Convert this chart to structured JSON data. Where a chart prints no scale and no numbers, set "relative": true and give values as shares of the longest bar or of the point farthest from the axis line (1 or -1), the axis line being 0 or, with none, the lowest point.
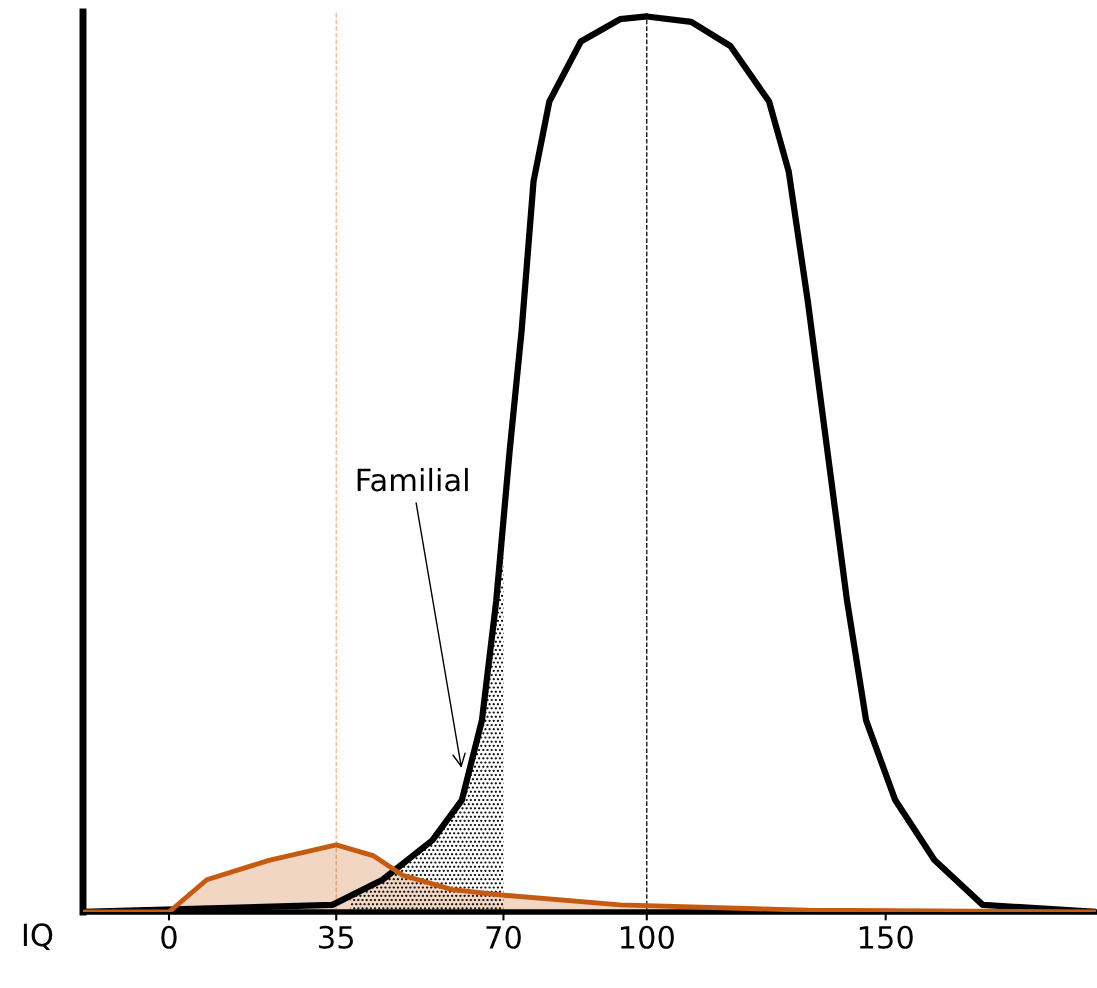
{
  "chart_data": {
    "type": "line",
    "relative": true,
    "xlabel": "IQ",
    "xlim": [
      -18,
      194
    ],
    "xticks": [
      0,
      35,
      70,
      100,
      150
    ],
    "tick_labels": "x",
    "grid": false,
    "marker": "none",
    "line_style": "solid",
    "series": [
      {
        "type": "area",
        "color": "#c55a11",
        "x": [
          -18,
          0,
          7.9,
          21.1,
          35,
          42.7,
          48.9,
          59.3,
          69.6,
          94.4,
          133.7,
          194
        ],
        "values": [
          0,
          0,
          0.036,
          0.058,
          0.075,
          0.063,
          0.041,
          0.025,
          0.019,
          0.008,
          0.002,
          0
        ]
      },
      {
        "type": "area",
        "color": "#000000",
        "x": [
          38,
          44.7,
          55.1,
          61.3,
          65.5,
          68.5,
          70
        ],
        "values": [
          0.02,
          0.036,
          0.08,
          0.125,
          0.214,
          0.348,
          0.42
        ]
      },
      {
        "color": "#000000",
        "x": [
          -18,
          34.2,
          44.7,
          55.1,
          61.3,
          65.5,
          68.5,
          71.3,
          73.8,
          76.3,
          79.6,
          86.2,
          94.4,
          100,
          109.3,
          117.5,
          125.6,
          129.7,
          133.7,
          137.8,
          141.9,
          145.9,
          152,
          160.2,
          170.3,
          194
        ],
        "values": [
          0,
          0.008,
          0.036,
          0.08,
          0.125,
          0.214,
          0.348,
          0.515,
          0.649,
          0.816,
          0.905,
          0.972,
          0.997,
          1,
          0.994,
          0.967,
          0.905,
          0.827,
          0.682,
          0.515,
          0.348,
          0.214,
          0.125,
          0.058,
          0.008,
          0
        ]
      }
    ],
    "ref_lines": [
      {
        "axis": "x",
        "value": 100,
        "color": "#000000",
        "line_style": "dashed"
      },
      {
        "axis": "x",
        "value": 35,
        "color": "#f4b183",
        "line_style": "dashed"
      }
    ],
    "annotations": [
      {
        "text": "Familial",
        "x": 61.3,
        "y": 0.158
      }
    ]
  }
}
